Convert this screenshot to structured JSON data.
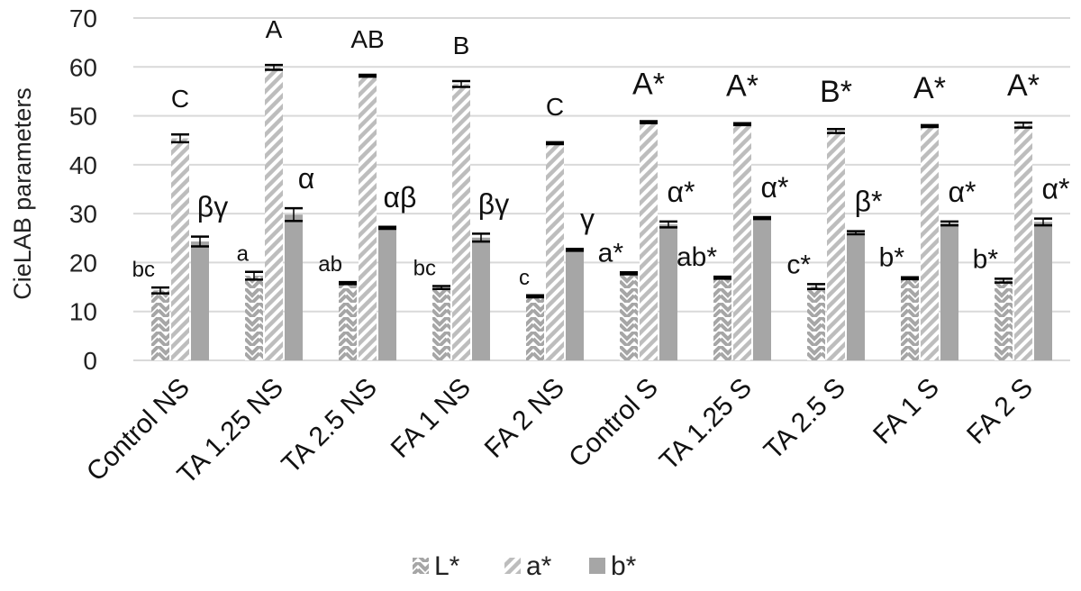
{
  "chart_data": {
    "type": "bar",
    "ylabel": "CieLAB parameters",
    "ylim": [
      0,
      70
    ],
    "yticks": [
      0,
      10,
      20,
      30,
      40,
      50,
      60,
      70
    ],
    "grid": true,
    "legend_position": "bottom",
    "categories": [
      "Control NS",
      "TA 1.25 NS",
      "TA 2.5 NS",
      "FA 1 NS",
      "FA 2 NS",
      "Control S",
      "TA 1.25 S",
      "TA 2.5 S",
      "FA 1 S",
      "FA 2 S"
    ],
    "series": [
      {
        "name": "L*",
        "color": "#b3b3b3",
        "pattern": "zigzag",
        "values": [
          14.3,
          17.3,
          15.8,
          14.9,
          13.1,
          17.8,
          16.9,
          15.1,
          16.8,
          16.3
        ],
        "errors": [
          0.6,
          0.8,
          0.2,
          0.3,
          0.2,
          0.2,
          0.2,
          0.5,
          0.2,
          0.4
        ],
        "labels": [
          "bc",
          "a",
          "ab",
          "bc",
          "c",
          "a*",
          "ab*",
          "c*",
          "b*",
          "b*"
        ]
      },
      {
        "name": "a*",
        "color": "#bfbfbf",
        "pattern": "wide-diagonal",
        "values": [
          45.4,
          59.9,
          58.2,
          56.5,
          44.4,
          48.7,
          48.3,
          46.9,
          47.9,
          48.1
        ],
        "errors": [
          0.8,
          0.5,
          0.2,
          0.6,
          0.2,
          0.2,
          0.2,
          0.4,
          0.2,
          0.5
        ],
        "labels": [
          "C",
          "A",
          "AB",
          "B",
          "C",
          "A*",
          "A*",
          "B*",
          "A*",
          "A*"
        ]
      },
      {
        "name": "b*",
        "color": "#a6a6a6",
        "pattern": "solid",
        "values": [
          24.3,
          29.8,
          27.1,
          25.1,
          22.6,
          27.8,
          29.1,
          26.1,
          28.0,
          28.3
        ],
        "errors": [
          1.0,
          1.3,
          0.2,
          0.8,
          0.2,
          0.6,
          0.2,
          0.3,
          0.4,
          0.7
        ],
        "labels": [
          "βγ",
          "α",
          "αβ",
          "βγ",
          "γ",
          "α*",
          "α*",
          "β*",
          "α*",
          "α*"
        ]
      }
    ]
  }
}
